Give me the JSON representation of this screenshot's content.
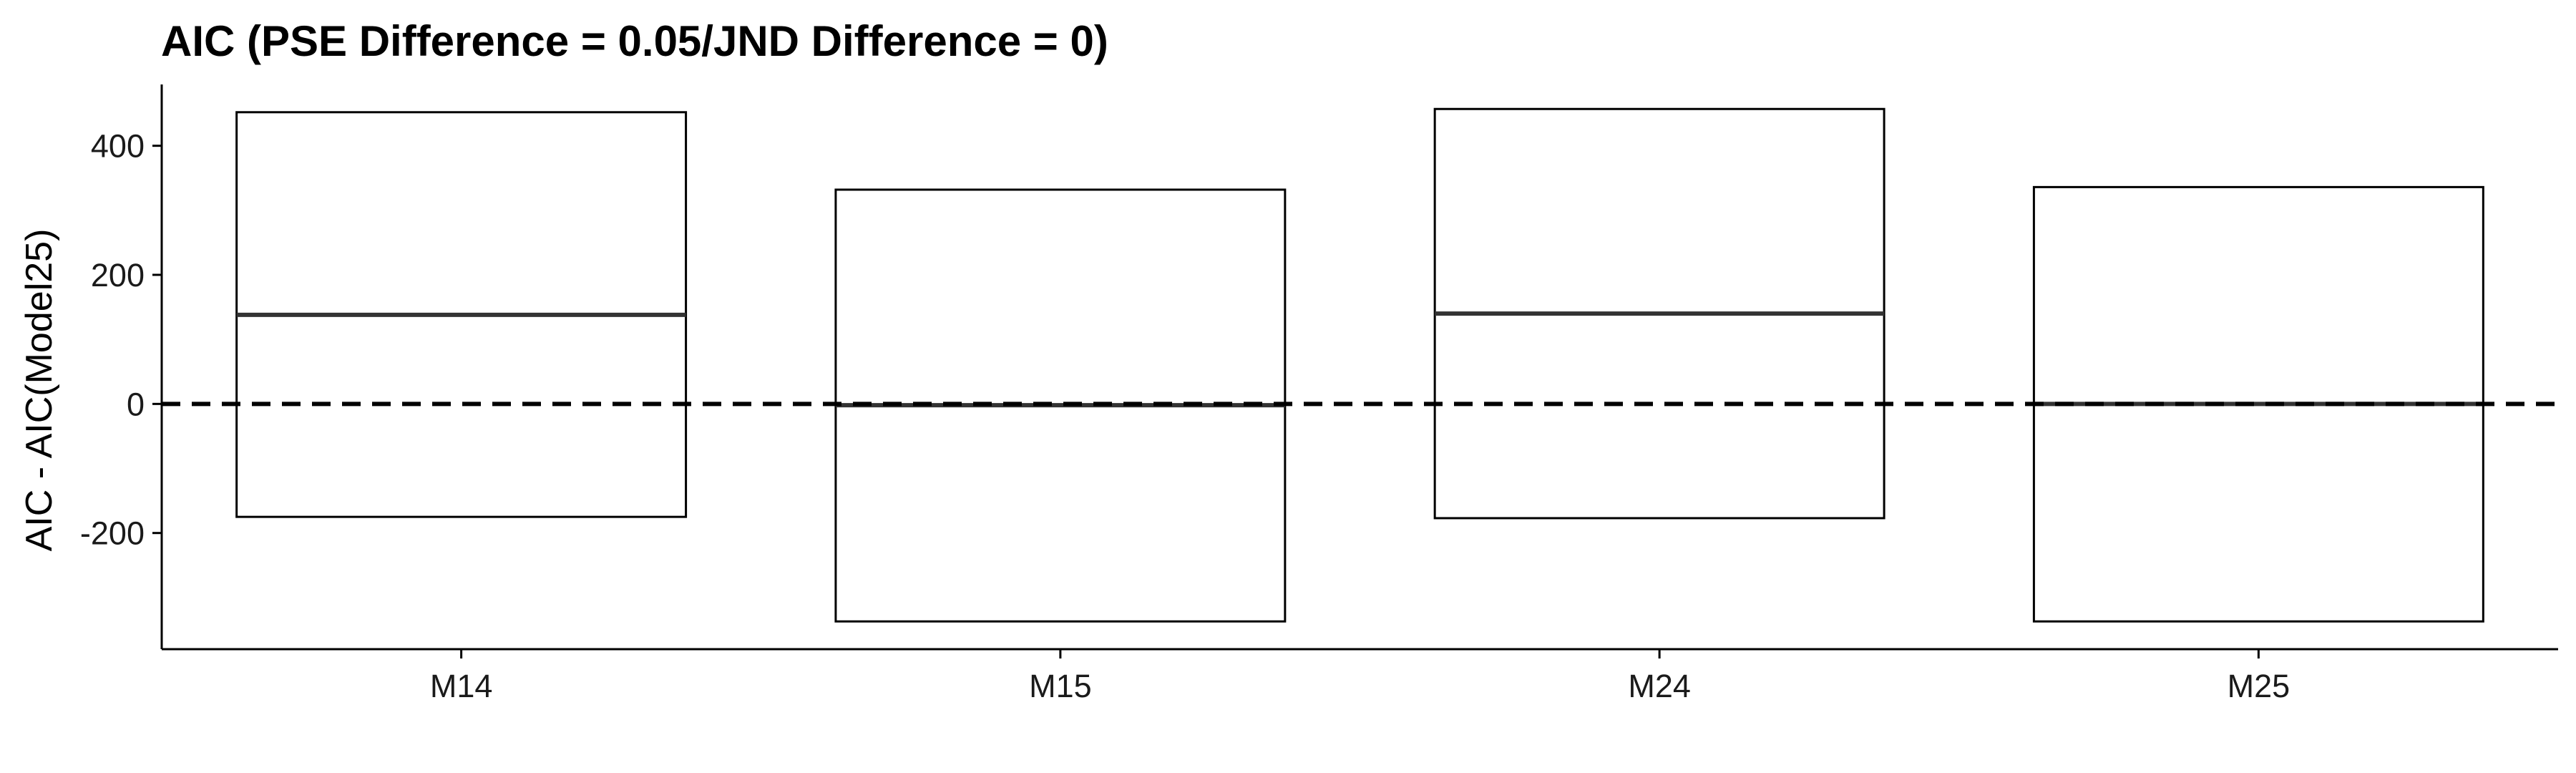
{
  "chart_data": {
    "type": "boxplot",
    "title": "AIC (PSE Difference = 0.05/JND Difference = 0)",
    "xlabel": "",
    "ylabel": "AIC - AIC(Model25)",
    "categories": [
      "M14",
      "M15",
      "M24",
      "M25"
    ],
    "boxes": [
      {
        "name": "M14",
        "lower": -175,
        "median": 138,
        "upper": 452
      },
      {
        "name": "M15",
        "lower": -337,
        "median": -2,
        "upper": 332
      },
      {
        "name": "M24",
        "lower": -177,
        "median": 140,
        "upper": 457
      },
      {
        "name": "M25",
        "lower": -337,
        "median": 0,
        "upper": 336
      }
    ],
    "yticks": [
      -200,
      0,
      200,
      400
    ],
    "ylim": [
      -380,
      495
    ],
    "reference_line": {
      "y": 0,
      "style": "dashed"
    },
    "grid": false
  },
  "colors": {
    "box_stroke": "#000000",
    "box_fill": "#ffffff",
    "median": "#333333",
    "reference_line": "#000000",
    "axis": "#000000"
  }
}
